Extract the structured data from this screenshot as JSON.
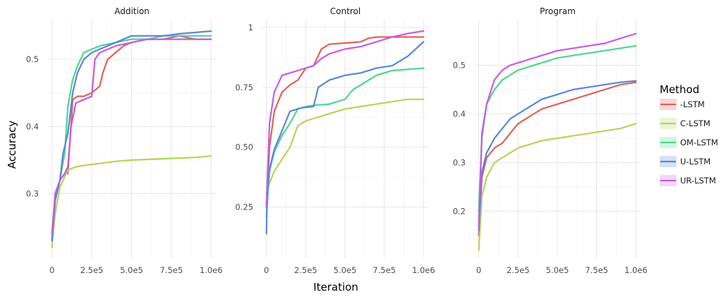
{
  "chart_data": {
    "type": "line",
    "xlabel": "Iteration",
    "ylabel": "Accuracy",
    "legend": {
      "title": "Method",
      "placement": "right",
      "entries": [
        "-LSTM",
        "C-LSTM",
        "OM-LSTM",
        "U-LSTM",
        "UR-LSTM"
      ]
    },
    "colors": {
      "-LSTM": "#E06257",
      "C-LSTM": "#B5D45A",
      "OM-LSTM": "#4DD68E",
      "U-LSTM": "#5A86DA",
      "UR-LSTM": "#C75BE2"
    },
    "grid": true,
    "panels": [
      {
        "title": "Addition",
        "xlim": [
          -25000,
          1030000
        ],
        "ylim": [
          0.205,
          0.56
        ],
        "xticks": [
          0,
          250000,
          500000,
          750000,
          1000000
        ],
        "xtick_labels": [
          "0",
          "2.5e5",
          "5.0e5",
          "7.5e5",
          "1.0e6"
        ],
        "yticks": [
          0.3,
          0.4,
          0.5
        ],
        "ytick_labels": [
          "0.3",
          "0.4",
          "0.5"
        ],
        "series": [
          {
            "name": "-LSTM",
            "x": [
              0,
              20000,
              50000,
              80000,
              100000,
              130000,
              160000,
              200000,
              250000,
              300000,
              320000,
              350000,
              400000,
              450000,
              500000,
              600000,
              700000,
              800000,
              900000,
              1000000
            ],
            "y": [
              0.23,
              0.29,
              0.32,
              0.33,
              0.33,
              0.44,
              0.445,
              0.445,
              0.45,
              0.46,
              0.48,
              0.5,
              0.51,
              0.52,
              0.525,
              0.53,
              0.53,
              0.535,
              0.53,
              0.53
            ]
          },
          {
            "name": "C-LSTM",
            "x": [
              0,
              20000,
              50000,
              100000,
              150000,
              200000,
              300000,
              400000,
              500000,
              600000,
              700000,
              800000,
              900000,
              1000000
            ],
            "y": [
              0.22,
              0.27,
              0.31,
              0.335,
              0.34,
              0.342,
              0.345,
              0.348,
              0.35,
              0.351,
              0.352,
              0.353,
              0.354,
              0.356
            ]
          },
          {
            "name": "OM-LSTM",
            "x": [
              0,
              20000,
              50000,
              80000,
              100000,
              130000,
              160000,
              200000,
              250000,
              300000,
              400000,
              500000,
              600000,
              700000,
              800000,
              900000,
              1000000
            ],
            "y": [
              0.23,
              0.3,
              0.32,
              0.36,
              0.43,
              0.47,
              0.49,
              0.51,
              0.515,
              0.52,
              0.525,
              0.53,
              0.53,
              0.535,
              0.535,
              0.535,
              0.535
            ]
          },
          {
            "name": "U-LSTM",
            "x": [
              0,
              20000,
              50000,
              70000,
              100000,
              130000,
              160000,
              200000,
              250000,
              300000,
              400000,
              500000,
              600000,
              700000,
              800000,
              900000,
              1000000
            ],
            "y": [
              0.23,
              0.29,
              0.32,
              0.36,
              0.39,
              0.45,
              0.48,
              0.5,
              0.51,
              0.515,
              0.525,
              0.535,
              0.535,
              0.535,
              0.538,
              0.54,
              0.542
            ]
          },
          {
            "name": "UR-LSTM",
            "x": [
              0,
              20000,
              50000,
              80000,
              100000,
              120000,
              150000,
              200000,
              250000,
              270000,
              300000,
              400000,
              500000,
              600000,
              700000,
              800000,
              900000,
              1000000
            ],
            "y": [
              0.24,
              0.3,
              0.32,
              0.33,
              0.34,
              0.4,
              0.435,
              0.44,
              0.445,
              0.5,
              0.51,
              0.52,
              0.525,
              0.53,
              0.53,
              0.53,
              0.53,
              0.53
            ]
          }
        ]
      },
      {
        "title": "Control",
        "xlim": [
          -25000,
          1030000
        ],
        "ylim": [
          0.04,
          1.035
        ],
        "xticks": [
          0,
          250000,
          500000,
          750000,
          1000000
        ],
        "xtick_labels": [
          "0",
          "2.5e5",
          "5.0e5",
          "7.5e5",
          "1.0e6"
        ],
        "yticks": [
          0.25,
          0.5,
          0.75,
          1.0
        ],
        "ytick_labels": [
          "0.25",
          "0.50",
          "0.75",
          "1"
        ],
        "series": [
          {
            "name": "-LSTM",
            "x": [
              0,
              20000,
              50000,
              100000,
              150000,
              200000,
              250000,
              300000,
              350000,
              400000,
              500000,
              600000,
              650000,
              700000,
              800000,
              900000,
              1000000
            ],
            "y": [
              0.25,
              0.5,
              0.65,
              0.73,
              0.76,
              0.78,
              0.83,
              0.84,
              0.91,
              0.93,
              0.935,
              0.94,
              0.955,
              0.96,
              0.96,
              0.96,
              0.96
            ]
          },
          {
            "name": "C-LSTM",
            "x": [
              0,
              20000,
              50000,
              100000,
              150000,
              200000,
              250000,
              300000,
              400000,
              500000,
              600000,
              700000,
              800000,
              900000,
              1000000
            ],
            "y": [
              0.31,
              0.35,
              0.4,
              0.45,
              0.5,
              0.59,
              0.61,
              0.62,
              0.64,
              0.66,
              0.67,
              0.68,
              0.69,
              0.7,
              0.7
            ]
          },
          {
            "name": "OM-LSTM",
            "x": [
              0,
              20000,
              50000,
              100000,
              150000,
              200000,
              250000,
              300000,
              400000,
              500000,
              550000,
              600000,
              700000,
              800000,
              900000,
              1000000
            ],
            "y": [
              0.21,
              0.4,
              0.48,
              0.55,
              0.6,
              0.66,
              0.67,
              0.675,
              0.68,
              0.7,
              0.74,
              0.76,
              0.8,
              0.82,
              0.825,
              0.83
            ]
          },
          {
            "name": "U-LSTM",
            "x": [
              0,
              5000,
              20000,
              50000,
              100000,
              150000,
              200000,
              230000,
              300000,
              330000,
              400000,
              500000,
              600000,
              700000,
              800000,
              900000,
              1000000
            ],
            "y": [
              0.14,
              0.3,
              0.41,
              0.49,
              0.57,
              0.65,
              0.66,
              0.665,
              0.67,
              0.75,
              0.78,
              0.8,
              0.81,
              0.83,
              0.84,
              0.88,
              0.94
            ]
          },
          {
            "name": "UR-LSTM",
            "x": [
              0,
              20000,
              50000,
              100000,
              150000,
              200000,
              250000,
              300000,
              350000,
              400000,
              500000,
              600000,
              700000,
              800000,
              900000,
              1000000
            ],
            "y": [
              0.26,
              0.6,
              0.73,
              0.8,
              0.81,
              0.82,
              0.83,
              0.84,
              0.87,
              0.89,
              0.91,
              0.92,
              0.94,
              0.96,
              0.975,
              0.985
            ]
          }
        ]
      },
      {
        "title": "Program",
        "xlim": [
          -25000,
          1030000
        ],
        "ylim": [
          0.105,
          0.595
        ],
        "xticks": [
          0,
          250000,
          500000,
          750000,
          1000000
        ],
        "xtick_labels": [
          "0",
          "2.5e5",
          "5.0e5",
          "7.5e5",
          "1.0e6"
        ],
        "yticks": [
          0.2,
          0.3,
          0.4,
          0.5
        ],
        "ytick_labels": [
          "0.2",
          "0.3",
          "0.4",
          "0.5"
        ],
        "series": [
          {
            "name": "-LSTM",
            "x": [
              0,
              20000,
              50000,
              100000,
              150000,
              200000,
              250000,
              300000,
              400000,
              500000,
              600000,
              700000,
              800000,
              900000,
              1000000
            ],
            "y": [
              0.15,
              0.27,
              0.31,
              0.33,
              0.34,
              0.36,
              0.38,
              0.39,
              0.41,
              0.42,
              0.43,
              0.44,
              0.45,
              0.46,
              0.465
            ]
          },
          {
            "name": "C-LSTM",
            "x": [
              0,
              20000,
              50000,
              100000,
              150000,
              200000,
              250000,
              300000,
              400000,
              500000,
              600000,
              700000,
              800000,
              900000,
              1000000
            ],
            "y": [
              0.12,
              0.23,
              0.27,
              0.3,
              0.31,
              0.32,
              0.33,
              0.335,
              0.345,
              0.35,
              0.355,
              0.36,
              0.365,
              0.37,
              0.38
            ]
          },
          {
            "name": "OM-LSTM",
            "x": [
              0,
              20000,
              50000,
              100000,
              150000,
              200000,
              250000,
              300000,
              400000,
              500000,
              600000,
              700000,
              800000,
              900000,
              1000000
            ],
            "y": [
              0.2,
              0.35,
              0.42,
              0.45,
              0.47,
              0.48,
              0.49,
              0.495,
              0.505,
              0.515,
              0.52,
              0.525,
              0.53,
              0.535,
              0.54
            ]
          },
          {
            "name": "U-LSTM",
            "x": [
              0,
              20000,
              50000,
              100000,
              150000,
              200000,
              250000,
              300000,
              400000,
              500000,
              600000,
              700000,
              800000,
              900000,
              1000000
            ],
            "y": [
              0.16,
              0.28,
              0.32,
              0.35,
              0.37,
              0.39,
              0.4,
              0.41,
              0.43,
              0.44,
              0.45,
              0.455,
              0.46,
              0.465,
              0.468
            ]
          },
          {
            "name": "UR-LSTM",
            "x": [
              0,
              20000,
              50000,
              100000,
              150000,
              200000,
              250000,
              300000,
              400000,
              500000,
              600000,
              700000,
              800000,
              900000,
              1000000
            ],
            "y": [
              0.17,
              0.36,
              0.42,
              0.47,
              0.49,
              0.5,
              0.505,
              0.51,
              0.52,
              0.53,
              0.535,
              0.54,
              0.545,
              0.555,
              0.565
            ]
          }
        ]
      }
    ]
  }
}
